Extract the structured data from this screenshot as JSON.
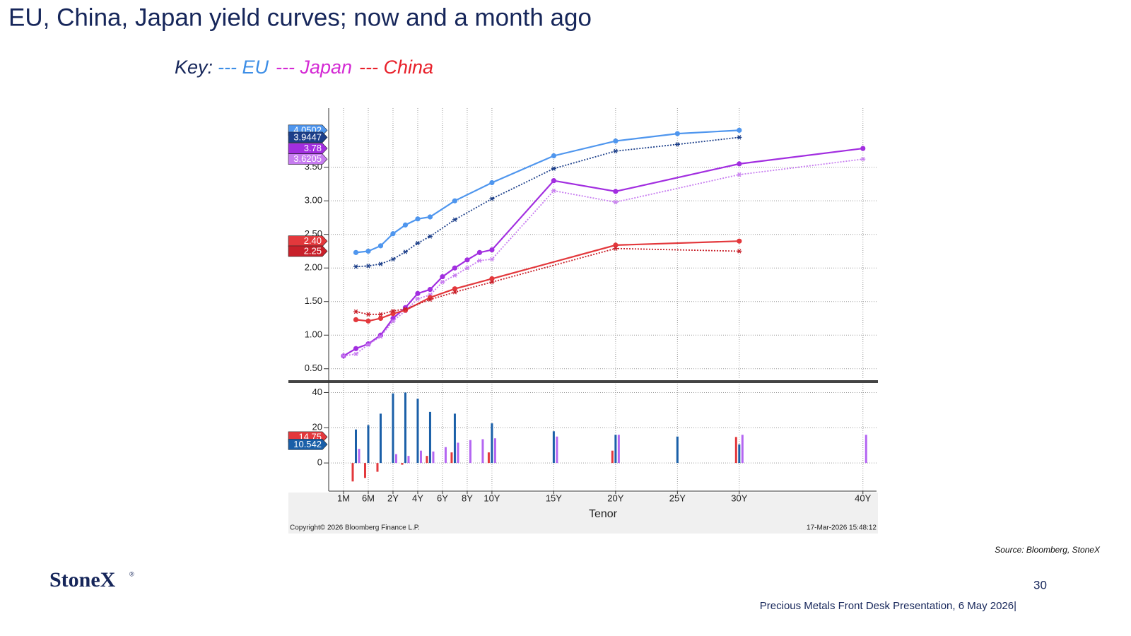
{
  "slide": {
    "title": "EU, China, Japan yield curves; now and a month ago",
    "key": {
      "label": "Key:",
      "items": [
        {
          "text": "--- EU",
          "color": "#3d8ee6"
        },
        {
          "text": "--- Japan",
          "color": "#d42ad4"
        },
        {
          "text": "--- China",
          "color": "#e8202a"
        }
      ]
    },
    "source": "Source: Bloomberg, StoneX",
    "logo": "StoneX",
    "logo_mark": "®",
    "page_number": "30",
    "footer": "Precious Metals Front Desk Presentation, 6 May 2026|"
  },
  "chart_data": [
    {
      "type": "line",
      "ylim": [
        0.34,
        4.38
      ],
      "yticks": [
        {
          "value": 0.5,
          "label": "0.50"
        },
        {
          "value": 1,
          "label": "1.00"
        },
        {
          "value": 1.5,
          "label": "1.50"
        },
        {
          "value": 2,
          "label": "2.00"
        },
        {
          "value": 2.5,
          "label": "2.50"
        },
        {
          "value": 3,
          "label": "3.00"
        },
        {
          "value": 3.5,
          "label": "3.50"
        }
      ],
      "grid": true,
      "series": [
        {
          "name": "EU",
          "color": "#4f96ee",
          "dash": "solid",
          "x": [
            1,
            2,
            3,
            4,
            5,
            6,
            7,
            9,
            12,
            17,
            22,
            27,
            32
          ],
          "values": [
            2.23,
            2.25,
            2.33,
            2.51,
            2.64,
            2.73,
            2.76,
            3.0,
            3.27,
            3.67,
            3.89,
            4.0,
            4.0502
          ],
          "last_label": "4.0502"
        },
        {
          "name": "EU",
          "color": "#1c3f8a",
          "dash": "dotted",
          "x": [
            1,
            2,
            3,
            4,
            5,
            6,
            7,
            9,
            12,
            17,
            22,
            27,
            32
          ],
          "values": [
            2.02,
            2.03,
            2.06,
            2.13,
            2.24,
            2.37,
            2.47,
            2.72,
            3.03,
            3.48,
            3.74,
            3.84,
            3.9447
          ],
          "last_label": "3.9447"
        },
        {
          "name": "Japan",
          "color": "#a22ee0",
          "dash": "solid",
          "x": [
            0,
            1,
            2,
            3,
            4,
            5,
            6,
            7,
            8,
            9,
            10,
            11,
            12,
            17,
            22,
            32,
            42
          ],
          "values": [
            0.69,
            0.8,
            0.87,
            1.0,
            1.25,
            1.41,
            1.62,
            1.68,
            1.87,
            2.0,
            2.12,
            2.23,
            2.27,
            3.3,
            3.14,
            3.55,
            3.78
          ],
          "last_label": "3.78"
        },
        {
          "name": "Japan",
          "color": "#c77cf0",
          "dash": "dotted",
          "x": [
            0,
            1,
            2,
            3,
            4,
            5,
            6,
            7,
            8,
            9,
            10,
            11,
            12,
            17,
            22,
            32,
            42
          ],
          "values": [
            0.69,
            0.72,
            0.86,
            0.98,
            1.21,
            1.36,
            1.54,
            1.6,
            1.79,
            1.89,
            2.0,
            2.11,
            2.13,
            3.15,
            2.98,
            3.39,
            3.6205
          ],
          "last_label": "3.6205"
        },
        {
          "name": "China",
          "color": "#e3383c",
          "dash": "solid",
          "x": [
            1,
            2,
            3,
            4,
            5,
            7,
            9,
            12,
            22,
            32
          ],
          "values": [
            1.23,
            1.21,
            1.25,
            1.32,
            1.37,
            1.56,
            1.69,
            1.84,
            2.34,
            2.4
          ],
          "last_label": "2.40"
        },
        {
          "name": "China",
          "color": "#c8202a",
          "dash": "dotted",
          "x": [
            1,
            2,
            3,
            4,
            5,
            7,
            9,
            12,
            22,
            32
          ],
          "values": [
            1.35,
            1.31,
            1.31,
            1.36,
            1.39,
            1.53,
            1.64,
            1.79,
            2.29,
            2.25
          ],
          "last_label": "2.25"
        }
      ]
    },
    {
      "type": "bar",
      "xlabel": "Tenor",
      "xlim": [
        -1.2,
        43.1
      ],
      "xticks": [
        {
          "value": 0,
          "label": "1M"
        },
        {
          "value": 2,
          "label": "6M"
        },
        {
          "value": 4,
          "label": "2Y"
        },
        {
          "value": 6,
          "label": "4Y"
        },
        {
          "value": 8,
          "label": "6Y"
        },
        {
          "value": 10,
          "label": "8Y"
        },
        {
          "value": 12,
          "label": "10Y"
        },
        {
          "value": 17,
          "label": "15Y"
        },
        {
          "value": 22,
          "label": "20Y"
        },
        {
          "value": 27,
          "label": "25Y"
        },
        {
          "value": 32,
          "label": "30Y"
        },
        {
          "value": 42,
          "label": "40Y"
        }
      ],
      "ylim": [
        -16,
        45
      ],
      "yticks": [
        0,
        20,
        40
      ],
      "grid": true,
      "series": [
        {
          "name": "China",
          "color": "#e3383c",
          "x": [
            1,
            2,
            3,
            5,
            7,
            9,
            12,
            22,
            32
          ],
          "values": [
            -10.5,
            -8.5,
            -5,
            -1,
            4,
            6,
            6,
            7,
            14.75
          ],
          "last_label": "14.75"
        },
        {
          "name": "EU",
          "color": "#1a5fa8",
          "x": [
            1,
            2,
            3,
            4,
            5,
            6,
            7,
            9,
            12,
            17,
            22,
            27,
            32
          ],
          "values": [
            19,
            21.5,
            28,
            39.5,
            40,
            36.5,
            29,
            28,
            22.5,
            18,
            16,
            15,
            10.542
          ],
          "last_label": "10.542"
        },
        {
          "name": "Japan",
          "color": "#b466f2",
          "x": [
            1,
            4,
            5,
            6,
            7,
            8,
            9,
            10,
            11,
            12,
            17,
            22,
            32,
            42
          ],
          "values": [
            8,
            5,
            4,
            7,
            6.5,
            9,
            11.5,
            13,
            13.5,
            14,
            15,
            16,
            16,
            16
          ]
        }
      ],
      "copyright": "Copyright© 2026 Bloomberg Finance L.P.",
      "timestamp": "17-Mar-2026 15:48:12"
    }
  ]
}
